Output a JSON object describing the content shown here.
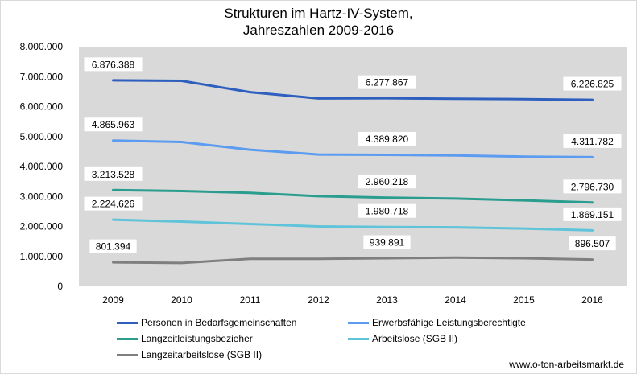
{
  "title_line1": "Strukturen im Hartz-IV-System,",
  "title_line2": "Jahreszahlen 2009-2016",
  "source": "www.o-ton-arbeitsmarkt.de",
  "chart_data": {
    "type": "line",
    "title": "Strukturen im Hartz-IV-System, Jahreszahlen 2009-2016",
    "categories": [
      "2009",
      "2010",
      "2011",
      "2012",
      "2013",
      "2014",
      "2015",
      "2016"
    ],
    "ylim": [
      0,
      8000000
    ],
    "y_ticks": [
      "0",
      "1.000.000",
      "2.000.000",
      "3.000.000",
      "4.000.000",
      "5.000.000",
      "6.000.000",
      "7.000.000",
      "8.000.000"
    ],
    "grid": false,
    "legend_position": "bottom",
    "plot_background": "#d9d9d9",
    "series": [
      {
        "name": "Personen in Bedarfsgemeinschaften",
        "color": "#2e5fbf",
        "values": [
          6876388,
          6860000,
          6480000,
          6270000,
          6277867,
          6260000,
          6250000,
          6226825
        ],
        "labels": [
          "6.876.388",
          "",
          "",
          "",
          "6.277.867",
          "",
          "",
          "6.226.825"
        ]
      },
      {
        "name": "Erwerbsfähige Leistungsberechtigte",
        "color": "#5b9bf0",
        "values": [
          4865963,
          4820000,
          4560000,
          4400000,
          4389820,
          4370000,
          4330000,
          4311782
        ],
        "labels": [
          "4.865.963",
          "",
          "",
          "",
          "4.389.820",
          "",
          "",
          "4.311.782"
        ]
      },
      {
        "name": "Langzeitleistungsbezieher",
        "color": "#2a9d8f",
        "values": [
          3213528,
          3180000,
          3120000,
          3010000,
          2960218,
          2930000,
          2870000,
          2796730
        ],
        "labels": [
          "3.213.528",
          "",
          "",
          "",
          "2.960.218",
          "",
          "",
          "2.796.730"
        ]
      },
      {
        "name": "Arbeitslose (SGB II)",
        "color": "#5fc4d9",
        "values": [
          2224626,
          2160000,
          2080000,
          2000000,
          1980718,
          1970000,
          1930000,
          1869151
        ],
        "labels": [
          "2.224.626",
          "",
          "",
          "",
          "1.980.718",
          "",
          "",
          "1.869.151"
        ]
      },
      {
        "name": "Langzeitarbeitslose (SGB II)",
        "color": "#7f7f7f",
        "values": [
          801394,
          780000,
          920000,
          920000,
          939891,
          960000,
          940000,
          896507
        ],
        "labels": [
          "801.394",
          "",
          "",
          "",
          "939.891",
          "",
          "",
          "896.507"
        ]
      }
    ]
  }
}
